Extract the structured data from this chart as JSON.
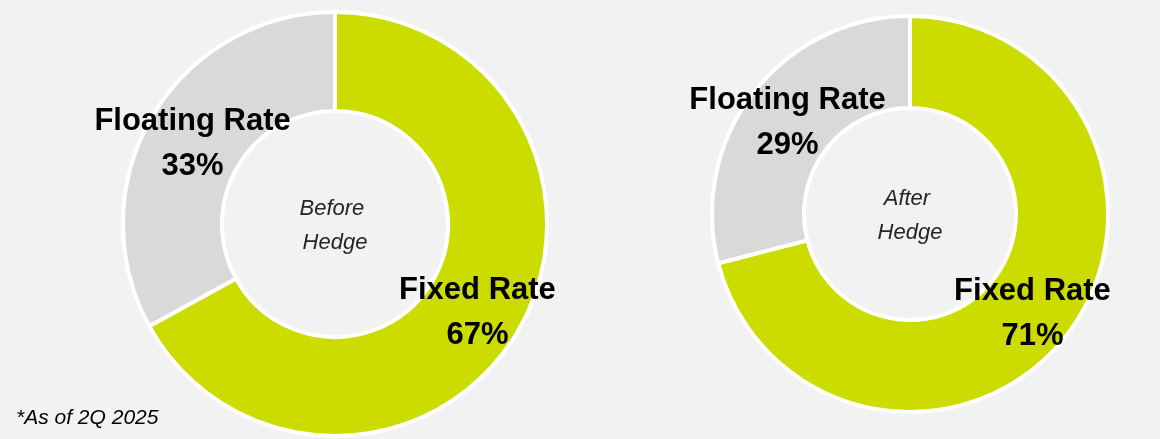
{
  "chart_data": [
    {
      "type": "donut",
      "title": "Before Hedge",
      "categories": [
        "Fixed Rate",
        "Floating Rate"
      ],
      "values": [
        67,
        33
      ],
      "value_labels": [
        "67%",
        "33%"
      ],
      "colors": [
        "#cddc00",
        "#d9d9d9"
      ],
      "legend": false,
      "annotations": [
        "*As of 2Q 2025"
      ]
    },
    {
      "type": "donut",
      "title": "After Hedge",
      "categories": [
        "Fixed Rate",
        "Floating Rate"
      ],
      "values": [
        71,
        29
      ],
      "value_labels": [
        "71%",
        "29%"
      ],
      "colors": [
        "#cddc00",
        "#d9d9d9"
      ],
      "legend": false
    }
  ]
}
